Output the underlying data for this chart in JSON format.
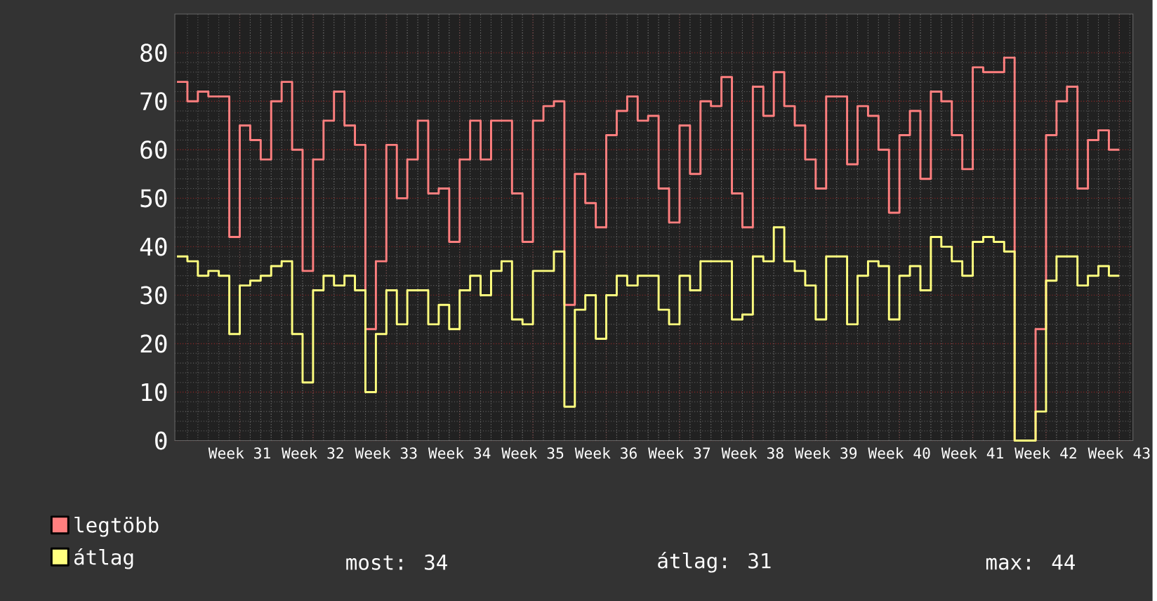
{
  "chart_data": {
    "type": "step",
    "categories": [
      null,
      null,
      null,
      null,
      null,
      null,
      "Week 31",
      null,
      null,
      null,
      null,
      null,
      null,
      "Week 32",
      null,
      null,
      null,
      null,
      null,
      null,
      "Week 33",
      null,
      null,
      null,
      null,
      null,
      null,
      "Week 34",
      null,
      null,
      null,
      null,
      null,
      null,
      "Week 35",
      null,
      null,
      null,
      null,
      null,
      null,
      "Week 36",
      null,
      null,
      null,
      null,
      null,
      null,
      "Week 37",
      null,
      null,
      null,
      null,
      null,
      null,
      "Week 38",
      null,
      null,
      null,
      null,
      null,
      null,
      "Week 39",
      null,
      null,
      null,
      null,
      null,
      null,
      "Week 40",
      null,
      null,
      null,
      null,
      null,
      null,
      "Week 41",
      null,
      null,
      null,
      null,
      null,
      null,
      "Week 42",
      null,
      null,
      null,
      null,
      null,
      null,
      "Week 43"
    ],
    "series": [
      {
        "name": "legtöbb",
        "color": "#ff7f7f",
        "values": [
          74,
          70,
          72,
          71,
          71,
          42,
          65,
          62,
          58,
          70,
          74,
          60,
          35,
          58,
          66,
          72,
          65,
          61,
          23,
          37,
          61,
          50,
          58,
          66,
          51,
          52,
          41,
          58,
          66,
          58,
          66,
          66,
          51,
          41,
          66,
          69,
          70,
          28,
          55,
          49,
          44,
          63,
          68,
          71,
          66,
          67,
          52,
          45,
          65,
          55,
          70,
          69,
          75,
          51,
          44,
          73,
          67,
          76,
          69,
          65,
          58,
          52,
          71,
          71,
          57,
          69,
          67,
          60,
          47,
          63,
          68,
          54,
          72,
          70,
          63,
          56,
          77,
          76,
          76,
          79,
          0,
          0,
          23,
          63,
          70,
          73,
          52,
          62,
          64,
          60,
          60
        ]
      },
      {
        "name": "átlag",
        "color": "#ffff7f",
        "values": [
          38,
          37,
          34,
          35,
          34,
          22,
          32,
          33,
          34,
          36,
          37,
          22,
          12,
          31,
          34,
          32,
          34,
          31,
          10,
          22,
          31,
          24,
          31,
          31,
          24,
          28,
          23,
          31,
          34,
          30,
          35,
          37,
          25,
          24,
          35,
          35,
          39,
          7,
          27,
          30,
          21,
          30,
          34,
          32,
          34,
          34,
          27,
          24,
          34,
          31,
          37,
          37,
          37,
          25,
          26,
          38,
          37,
          44,
          37,
          35,
          32,
          25,
          38,
          38,
          24,
          34,
          37,
          36,
          25,
          34,
          36,
          31,
          42,
          40,
          37,
          34,
          41,
          42,
          41,
          39,
          0,
          0,
          6,
          33,
          38,
          38,
          32,
          34,
          36,
          34,
          34
        ]
      }
    ],
    "ylim": [
      0,
      88
    ],
    "yticks": [
      0,
      10,
      20,
      30,
      40,
      50,
      60,
      70,
      80
    ],
    "grid": true,
    "legend": "bottom left",
    "annotations": [
      "most: 34",
      "átlag: 31",
      "max: 44"
    ]
  }
}
